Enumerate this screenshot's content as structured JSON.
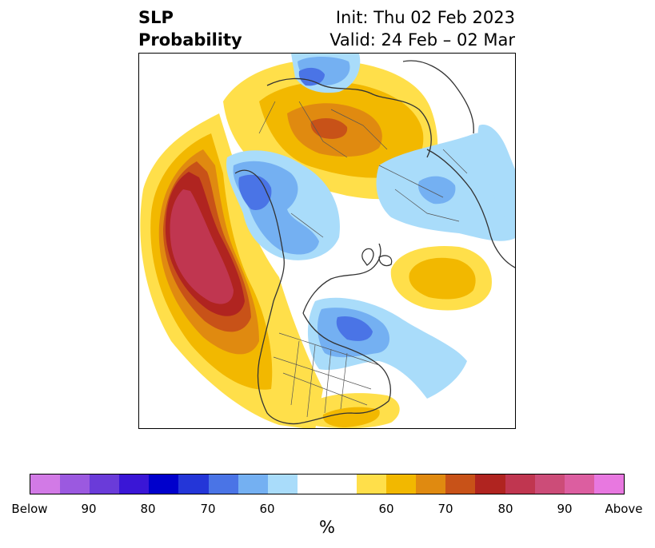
{
  "title": {
    "variable_line1": "SLP",
    "variable_line2": "Probability",
    "init": "Init: Thu 02 Feb 2023",
    "valid": "Valid: 24 Feb – 02 Mar"
  },
  "colorbar": {
    "unit": "%",
    "below_colors": [
      "#d27ae6",
      "#9b59e0",
      "#6a3bd9",
      "#3a16d6",
      "#0000cc",
      "#2436d8",
      "#4a74e6",
      "#74b0f2",
      "#a9dcfa"
    ],
    "above_colors": [
      "#ffdf4a",
      "#f2b800",
      "#e08a10",
      "#c85218",
      "#b02420",
      "#c03650",
      "#cc4c78",
      "#dc5ea0",
      "#e878e0"
    ],
    "tick_labels": [
      "Below",
      "90",
      "80",
      "70",
      "60",
      "60",
      "70",
      "80",
      "90",
      "Above"
    ]
  },
  "map": {
    "projection": "polar-stereographic-north",
    "palette": {
      "above_60": "#ffdf4a",
      "above_65": "#f2b800",
      "above_70": "#e08a10",
      "above_75": "#c85218",
      "above_80": "#b02420",
      "above_85": "#c03650",
      "below_60": "#a9dcfa",
      "below_65": "#74b0f2",
      "below_70": "#4a74e6",
      "coast": "#333333"
    }
  }
}
